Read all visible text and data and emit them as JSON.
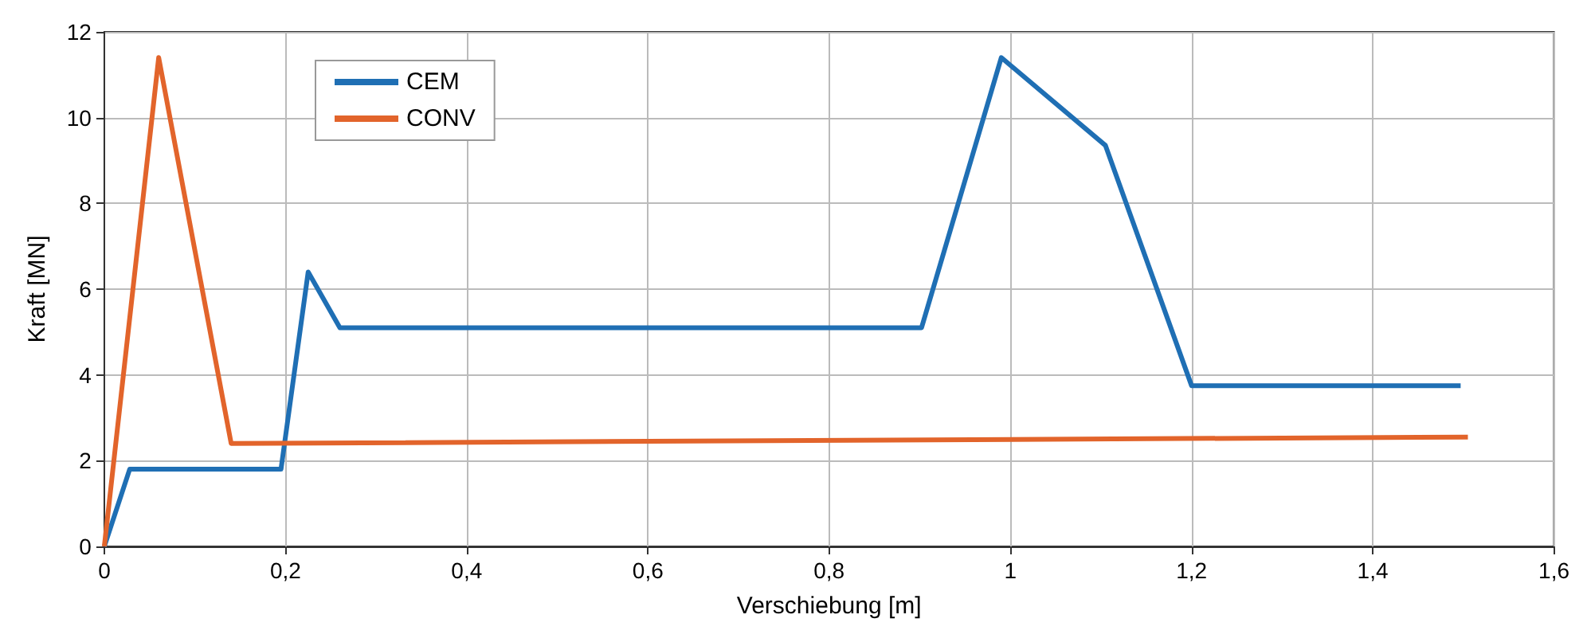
{
  "chart_data": {
    "type": "line",
    "xlabel": "Verschiebung [m]",
    "ylabel": "Kraft [MN]",
    "xlim": [
      0,
      1.6
    ],
    "ylim": [
      0,
      12
    ],
    "xticks": [
      0,
      {
        "value": 0.2,
        "label": "0,2"
      },
      {
        "value": 0.4,
        "label": "0,4"
      },
      {
        "value": 0.6,
        "label": "0,6"
      },
      {
        "value": 0.8,
        "label": "0,8"
      },
      1,
      {
        "value": 1.2,
        "label": "1,2"
      },
      {
        "value": 1.4,
        "label": "1,4"
      },
      {
        "value": 1.6,
        "label": "1,6"
      }
    ],
    "yticks": [
      0,
      2,
      4,
      6,
      8,
      10,
      12
    ],
    "grid": true,
    "legend": "top left",
    "line_style": "solid",
    "marker": "none",
    "series": [
      {
        "name": "CEM",
        "color": "#1f6fb4",
        "x": [
          0,
          0.028,
          0.195,
          0.225,
          0.26,
          0.902,
          0.99,
          1.105,
          1.2,
          1.497
        ],
        "values": [
          0,
          1.8,
          1.8,
          6.4,
          5.1,
          5.1,
          11.4,
          9.35,
          3.75,
          3.75
        ]
      },
      {
        "name": "CONV",
        "color": "#e2642b",
        "x": [
          0,
          0.06,
          0.14,
          1.505
        ],
        "values": [
          0,
          11.4,
          2.4,
          2.55
        ]
      }
    ]
  }
}
